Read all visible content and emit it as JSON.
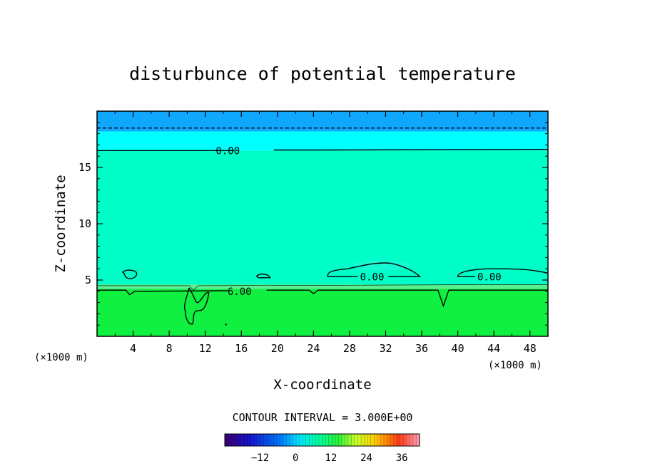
{
  "chart_data": {
    "type": "heatmap",
    "title": "disturbunce of potential temperature",
    "xlabel": "X-coordinate",
    "ylabel": "Z-coordinate",
    "x_unit": "(×1000 m)",
    "y_unit": "(×1000 m)",
    "xlim": [
      0,
      50
    ],
    "ylim": [
      0,
      20
    ],
    "x_ticks": [
      4,
      8,
      12,
      16,
      20,
      24,
      28,
      32,
      36,
      40,
      44,
      48
    ],
    "y_ticks": [
      5,
      10,
      15
    ],
    "bands": [
      {
        "z_from": 0,
        "z_to": 4.3,
        "value_range": [
          3,
          6
        ],
        "color": "#10f040"
      },
      {
        "z_from": 4.3,
        "z_to": 16.5,
        "value_range": [
          0,
          3
        ],
        "color": "#00ffc8"
      },
      {
        "z_from": 16.5,
        "z_to": 18.2,
        "value_range": [
          -3,
          0
        ],
        "color": "#00ffff"
      },
      {
        "z_from": 18.2,
        "z_to": 20,
        "value_range": [
          -6,
          -3
        ],
        "color": "#10a8ff"
      }
    ],
    "contour_labels": [
      {
        "text": "0.00",
        "x": 14.5,
        "z": 16.5
      },
      {
        "text": "0.00",
        "x": 30.5,
        "z": 5.3
      },
      {
        "text": "0.00",
        "x": 43.5,
        "z": 5.3
      },
      {
        "text": "6.00",
        "x": 15.8,
        "z": 4.0
      }
    ],
    "contour_interval_label": "CONTOUR INTERVAL = 3.000E+00",
    "colorbar": {
      "range": [
        -24,
        42
      ],
      "ticks": [
        -12,
        0,
        12,
        24,
        36
      ],
      "tick_labels": [
        "−12",
        "0",
        "12",
        "24",
        "36"
      ]
    }
  }
}
